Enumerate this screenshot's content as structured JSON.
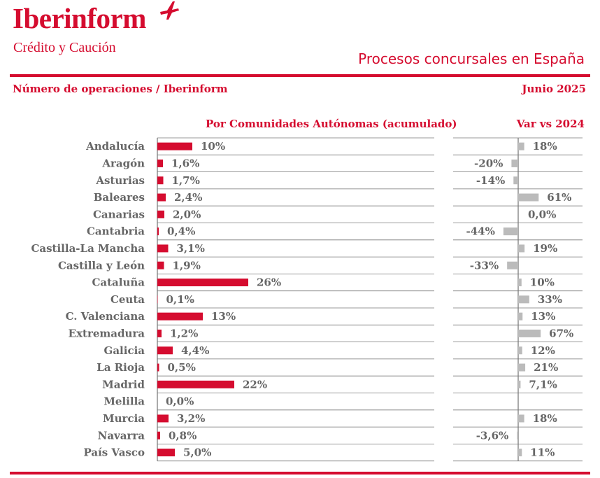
{
  "brand": {
    "name": "Iberinform",
    "tagline": "Crédito y Caución",
    "logo_icon": "plane-icon"
  },
  "header": {
    "title": "Procesos concursales en España",
    "subtitle": "Número de operaciones / Iberinform",
    "date": "Junio 2025"
  },
  "colors": {
    "accent": "#d50c2f",
    "secondary": "#bbbbbb",
    "text": "#666666"
  },
  "chart_data": [
    {
      "type": "bar",
      "title": "Por Comunidades Autónomas (acumulado)",
      "categories": [
        "Andalucía",
        "Aragón",
        "Asturias",
        "Baleares",
        "Canarias",
        "Cantabria",
        "Castilla-La Mancha",
        "Castilla y León",
        "Cataluña",
        "Ceuta",
        "C. Valenciana",
        "Extremadura",
        "Galicia",
        "La Rioja",
        "Madrid",
        "Melilla",
        "Murcia",
        "Navarra",
        "País Vasco"
      ],
      "values": [
        10,
        1.6,
        1.7,
        2.4,
        2.0,
        0.4,
        3.1,
        1.9,
        26,
        0.1,
        13,
        1.2,
        4.4,
        0.5,
        22,
        0.0,
        3.2,
        0.8,
        5.0
      ],
      "value_labels": [
        "10%",
        "1,6%",
        "1,7%",
        "2,4%",
        "2,0%",
        "0,4%",
        "3,1%",
        "1,9%",
        "26%",
        "0,1%",
        "13%",
        "1,2%",
        "4,4%",
        "0,5%",
        "22%",
        "0,0%",
        "3,2%",
        "0,8%",
        "5,0%"
      ],
      "unit": "%",
      "orientation": "horizontal",
      "color": "#d50c2f",
      "grid": true
    },
    {
      "type": "bar",
      "title": "Var vs 2024",
      "categories": [
        "Andalucía",
        "Aragón",
        "Asturias",
        "Baleares",
        "Canarias",
        "Cantabria",
        "Castilla-La Mancha",
        "Castilla y León",
        "Cataluña",
        "Ceuta",
        "C. Valenciana",
        "Extremadura",
        "Galicia",
        "La Rioja",
        "Madrid",
        "Melilla",
        "Murcia",
        "Navarra",
        "País Vasco"
      ],
      "values": [
        18,
        -20,
        -14,
        61,
        0.0,
        -44,
        19,
        -33,
        10,
        33,
        13,
        67,
        12,
        21,
        7.1,
        null,
        18,
        -3.6,
        11
      ],
      "value_labels": [
        "18%",
        "-20%",
        "-14%",
        "61%",
        "0,0%",
        "-44%",
        "19%",
        "-33%",
        "10%",
        "33%",
        "13%",
        "67%",
        "12%",
        "21%",
        "7,1%",
        "",
        "18%",
        "-3,6%",
        "11%"
      ],
      "unit": "%",
      "orientation": "horizontal",
      "color": "#bbbbbb",
      "grid": true
    }
  ]
}
